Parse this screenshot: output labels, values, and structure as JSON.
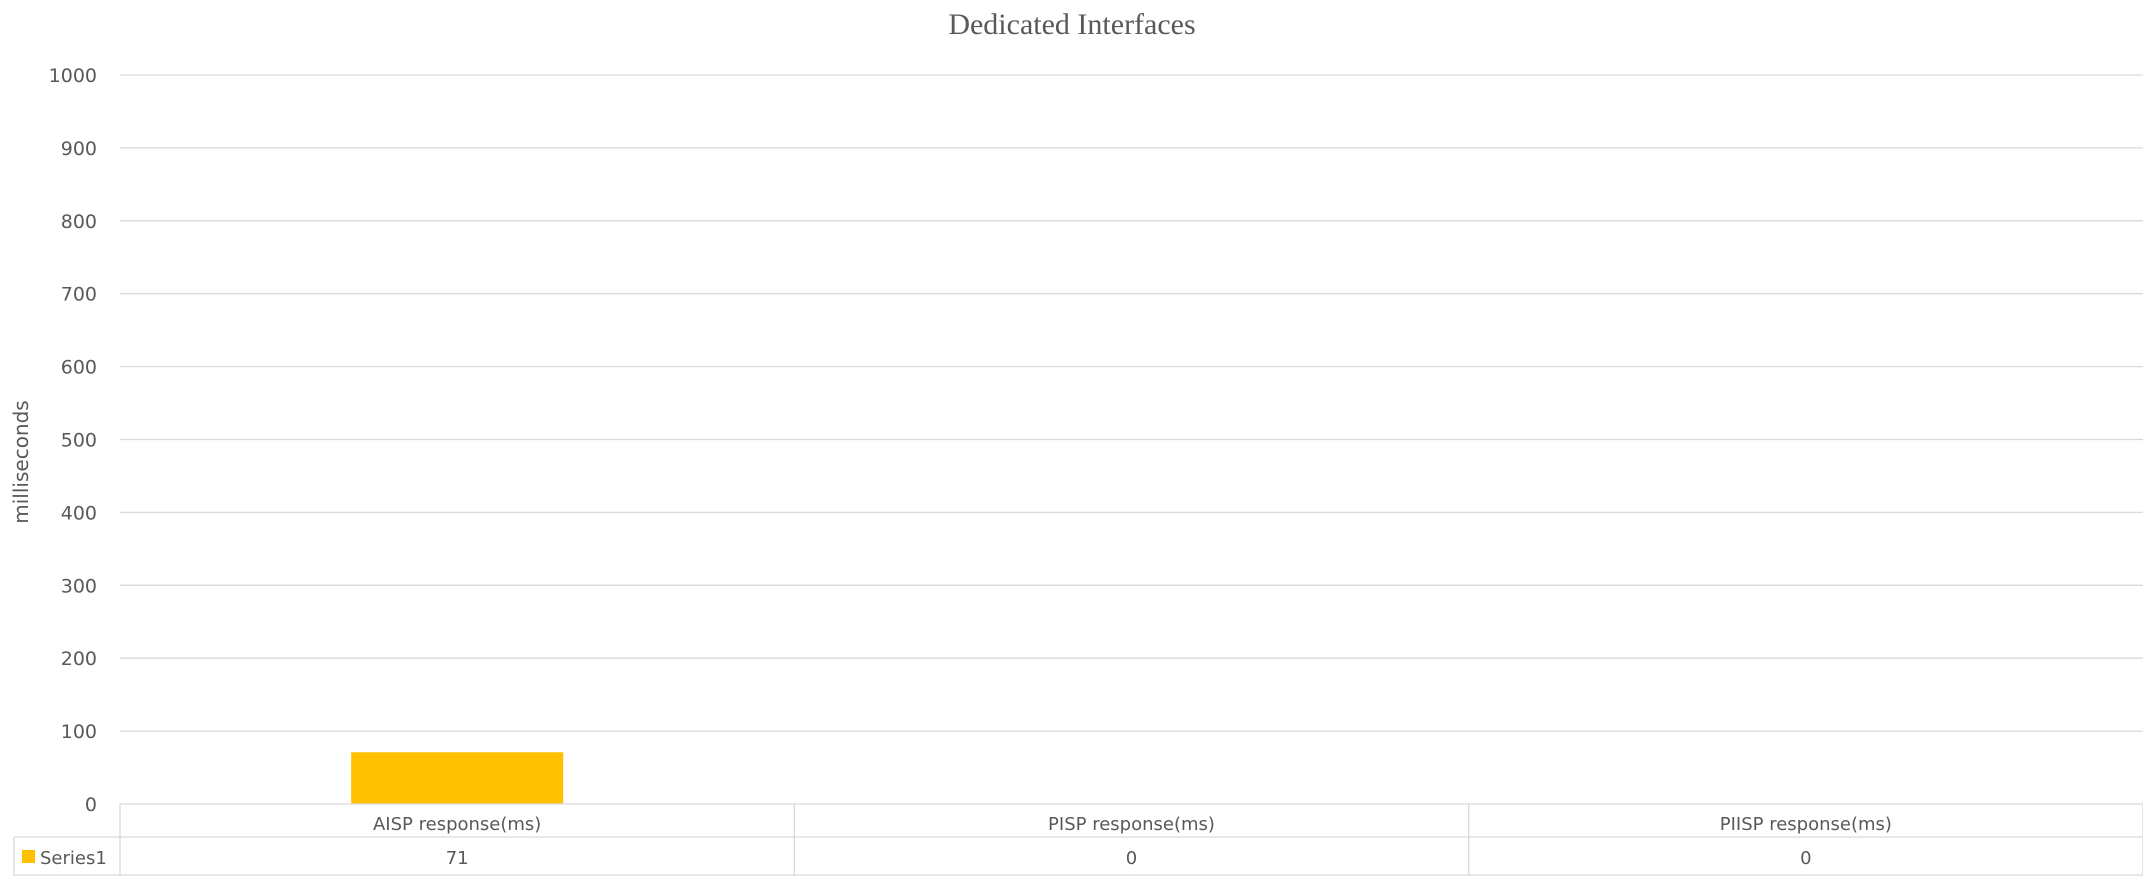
{
  "chart_data": {
    "type": "bar",
    "title": "Dedicated Interfaces",
    "xlabel": "",
    "ylabel": "milliseconds",
    "ylim": [
      0,
      1000
    ],
    "yticks": [
      0,
      100,
      200,
      300,
      400,
      500,
      600,
      700,
      800,
      900,
      1000
    ],
    "categories": [
      "AISP response(ms)",
      "PISP response(ms)",
      "PIISP response(ms)"
    ],
    "series": [
      {
        "name": "Series1",
        "values": [
          71,
          0,
          0
        ],
        "color": "#FFC000"
      }
    ],
    "grid": true,
    "legend": "data-table",
    "data_table": true
  }
}
